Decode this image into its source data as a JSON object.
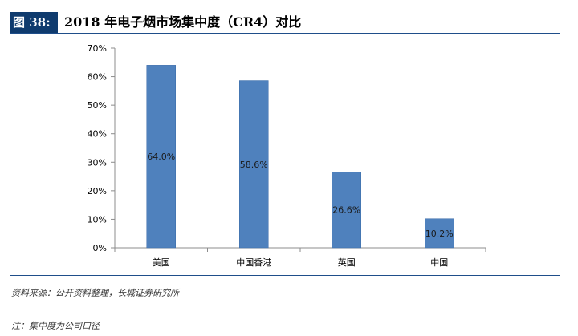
{
  "figure": {
    "tag": "图 38:",
    "title": "2018 年电子烟市场集中度（CR4）对比",
    "source": "资料来源：公开资料整理，长城证券研究所",
    "note": "注：集中度为公司口径"
  },
  "colors": {
    "bar": "#4f81bd",
    "bar_edge": "#3a6aa8",
    "axis": "#8c8c8c",
    "header_rule": "#1f4e8a",
    "tag_bg": "#0f3b6e"
  },
  "chart_data": {
    "type": "bar",
    "categories": [
      "美国",
      "中国香港",
      "英国",
      "中国"
    ],
    "values": [
      64.0,
      58.6,
      26.6,
      10.2
    ],
    "value_labels": [
      "64.0%",
      "58.6%",
      "26.6%",
      "10.2%"
    ],
    "y_ticks": [
      "0%",
      "10%",
      "20%",
      "30%",
      "40%",
      "50%",
      "60%",
      "70%"
    ],
    "ylim": [
      0,
      70
    ],
    "title": "",
    "xlabel": "",
    "ylabel": "",
    "grid": false,
    "legend": false
  }
}
